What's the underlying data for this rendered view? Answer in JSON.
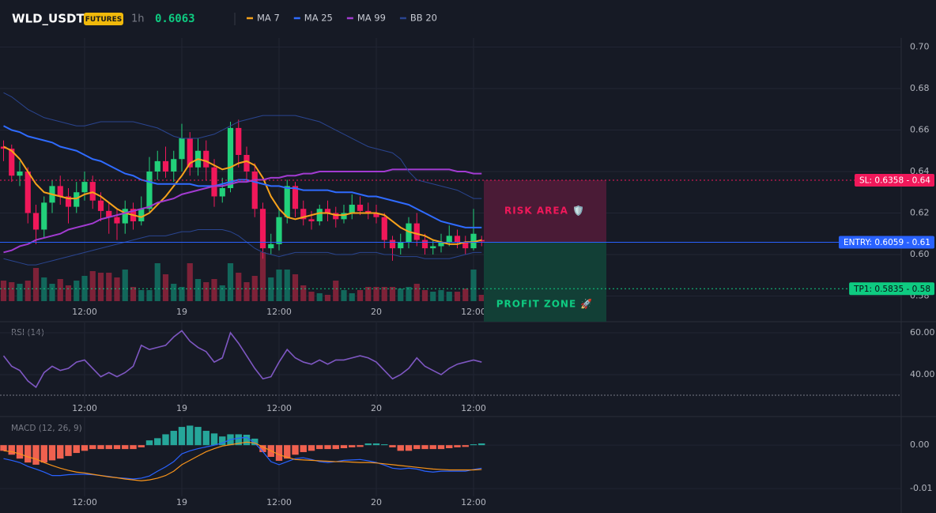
{
  "chart_data": [
    {
      "type": "candlestick",
      "symbol": "WLD_USDT",
      "badge": "FUTURES",
      "interval": "1h",
      "last_price": 0.6063,
      "categories": [
        null,
        null,
        null,
        null,
        null,
        null,
        null,
        null,
        null,
        null,
        "12:00",
        null,
        null,
        null,
        null,
        null,
        null,
        null,
        null,
        null,
        null,
        null,
        "19",
        null,
        null,
        null,
        null,
        null,
        null,
        null,
        null,
        null,
        null,
        null,
        "12:00",
        null,
        null,
        null,
        null,
        null,
        null,
        null,
        null,
        null,
        null,
        null,
        "20",
        null,
        null,
        null,
        null,
        null,
        null,
        null,
        null,
        null,
        null,
        null,
        "12:00",
        null
      ],
      "open": [
        0.652,
        0.651,
        0.638,
        0.64,
        0.62,
        0.612,
        0.625,
        0.633,
        0.628,
        0.623,
        0.63,
        0.635,
        0.626,
        0.621,
        0.618,
        0.615,
        0.622,
        0.616,
        0.622,
        0.64,
        0.645,
        0.64,
        0.646,
        0.656,
        0.642,
        0.65,
        0.642,
        0.628,
        0.632,
        0.661,
        0.648,
        0.64,
        0.622,
        0.603,
        0.605,
        0.618,
        0.633,
        0.622,
        0.617,
        0.616,
        0.622,
        0.62,
        0.617,
        0.62,
        0.624,
        0.621,
        0.62,
        0.618,
        0.607,
        0.603,
        0.606,
        0.615,
        0.607,
        0.603,
        0.604,
        0.606,
        0.609,
        0.606,
        0.603,
        0.607
      ],
      "high": [
        0.655,
        0.653,
        0.645,
        0.642,
        0.624,
        0.628,
        0.636,
        0.638,
        0.632,
        0.635,
        0.64,
        0.638,
        0.63,
        0.625,
        0.622,
        0.626,
        0.625,
        0.628,
        0.647,
        0.65,
        0.652,
        0.65,
        0.663,
        0.659,
        0.656,
        0.655,
        0.646,
        0.637,
        0.664,
        0.665,
        0.652,
        0.644,
        0.625,
        0.61,
        0.622,
        0.636,
        0.635,
        0.626,
        0.621,
        0.624,
        0.626,
        0.623,
        0.624,
        0.629,
        0.628,
        0.625,
        0.624,
        0.62,
        0.609,
        0.61,
        0.618,
        0.62,
        0.61,
        0.607,
        0.61,
        0.614,
        0.612,
        0.609,
        0.622,
        0.609
      ],
      "low": [
        0.645,
        0.635,
        0.633,
        0.615,
        0.605,
        0.608,
        0.62,
        0.624,
        0.615,
        0.62,
        0.626,
        0.622,
        0.616,
        0.61,
        0.607,
        0.61,
        0.612,
        0.614,
        0.62,
        0.636,
        0.637,
        0.635,
        0.64,
        0.638,
        0.638,
        0.636,
        0.623,
        0.625,
        0.63,
        0.642,
        0.635,
        0.618,
        0.598,
        0.6,
        0.602,
        0.615,
        0.618,
        0.614,
        0.612,
        0.614,
        0.616,
        0.613,
        0.615,
        0.617,
        0.619,
        0.617,
        0.615,
        0.603,
        0.597,
        0.6,
        0.603,
        0.604,
        0.6,
        0.6,
        0.601,
        0.604,
        0.603,
        0.6,
        0.602,
        0.604
      ],
      "close": [
        0.651,
        0.638,
        0.64,
        0.62,
        0.612,
        0.625,
        0.633,
        0.628,
        0.623,
        0.63,
        0.635,
        0.626,
        0.621,
        0.618,
        0.615,
        0.622,
        0.616,
        0.622,
        0.64,
        0.645,
        0.64,
        0.646,
        0.656,
        0.642,
        0.65,
        0.642,
        0.628,
        0.632,
        0.661,
        0.648,
        0.64,
        0.622,
        0.603,
        0.605,
        0.618,
        0.633,
        0.622,
        0.617,
        0.616,
        0.622,
        0.62,
        0.617,
        0.62,
        0.624,
        0.621,
        0.62,
        0.618,
        0.607,
        0.603,
        0.606,
        0.615,
        0.607,
        0.603,
        0.604,
        0.606,
        0.609,
        0.606,
        0.603,
        0.61,
        0.6063
      ],
      "volume": [
        26,
        24,
        22,
        26,
        42,
        30,
        22,
        28,
        20,
        26,
        32,
        38,
        36,
        36,
        30,
        40,
        18,
        14,
        14,
        48,
        34,
        22,
        18,
        48,
        28,
        24,
        28,
        20,
        48,
        36,
        24,
        32,
        62,
        30,
        40,
        40,
        34,
        20,
        12,
        10,
        8,
        26,
        14,
        10,
        14,
        18,
        18,
        18,
        18,
        16,
        18,
        22,
        14,
        12,
        14,
        12,
        12,
        16,
        40,
        8
      ],
      "up_color": "#22d07a",
      "down_color": "#f0185a",
      "volume_up_color": "#12675b",
      "volume_down_color": "#7d2238",
      "series": [
        {
          "name": "MA 7",
          "color": "#f7a21b",
          "values": [
            0.652,
            0.65,
            0.646,
            0.64,
            0.634,
            0.63,
            0.629,
            0.628,
            0.627,
            0.627,
            0.629,
            0.63,
            0.628,
            0.625,
            0.622,
            0.62,
            0.619,
            0.618,
            0.62,
            0.624,
            0.628,
            0.633,
            0.638,
            0.644,
            0.646,
            0.645,
            0.643,
            0.641,
            0.642,
            0.644,
            0.645,
            0.643,
            0.637,
            0.628,
            0.622,
            0.618,
            0.617,
            0.618,
            0.619,
            0.62,
            0.62,
            0.619,
            0.619,
            0.62,
            0.62,
            0.62,
            0.62,
            0.619,
            0.616,
            0.613,
            0.611,
            0.61,
            0.609,
            0.607,
            0.606,
            0.605,
            0.605,
            0.606,
            0.606,
            0.607
          ]
        },
        {
          "name": "MA 25",
          "color": "#2f6bff",
          "values": [
            0.662,
            0.66,
            0.659,
            0.657,
            0.656,
            0.655,
            0.654,
            0.652,
            0.651,
            0.65,
            0.648,
            0.646,
            0.645,
            0.643,
            0.641,
            0.639,
            0.638,
            0.636,
            0.635,
            0.634,
            0.634,
            0.634,
            0.634,
            0.634,
            0.633,
            0.633,
            0.633,
            0.634,
            0.635,
            0.636,
            0.636,
            0.635,
            0.634,
            0.633,
            0.633,
            0.632,
            0.632,
            0.631,
            0.631,
            0.631,
            0.631,
            0.63,
            0.63,
            0.63,
            0.629,
            0.628,
            0.628,
            0.627,
            0.626,
            0.625,
            0.624,
            0.622,
            0.62,
            0.618,
            0.616,
            0.615,
            0.614,
            0.613,
            0.613,
            0.613
          ]
        },
        {
          "name": "MA 99",
          "color": "#a23bd1",
          "values": [
            0.601,
            0.602,
            0.604,
            0.605,
            0.607,
            0.608,
            0.609,
            0.61,
            0.612,
            0.613,
            0.614,
            0.615,
            0.617,
            0.618,
            0.619,
            0.62,
            0.621,
            0.622,
            0.623,
            0.625,
            0.626,
            0.627,
            0.629,
            0.63,
            0.631,
            0.632,
            0.633,
            0.633,
            0.634,
            0.635,
            0.635,
            0.636,
            0.636,
            0.637,
            0.637,
            0.638,
            0.638,
            0.639,
            0.639,
            0.64,
            0.64,
            0.64,
            0.64,
            0.64,
            0.64,
            0.64,
            0.64,
            0.64,
            0.641,
            0.641,
            0.641,
            0.641,
            0.641,
            0.641,
            0.641,
            0.641,
            0.64,
            0.64,
            0.639,
            0.639
          ]
        },
        {
          "name": "BB 20",
          "color": "#2a4590",
          "upper": [
            0.678,
            0.676,
            0.673,
            0.67,
            0.668,
            0.666,
            0.665,
            0.664,
            0.663,
            0.662,
            0.662,
            0.663,
            0.664,
            0.664,
            0.664,
            0.664,
            0.664,
            0.663,
            0.662,
            0.661,
            0.659,
            0.657,
            0.656,
            0.656,
            0.656,
            0.657,
            0.658,
            0.66,
            0.662,
            0.664,
            0.665,
            0.666,
            0.667,
            0.667,
            0.667,
            0.667,
            0.667,
            0.666,
            0.665,
            0.664,
            0.662,
            0.66,
            0.658,
            0.656,
            0.654,
            0.652,
            0.651,
            0.65,
            0.649,
            0.646,
            0.64,
            0.636,
            0.635,
            0.634,
            0.633,
            0.632,
            0.631,
            0.629,
            0.627,
            0.627
          ],
          "lower": [
            0.598,
            0.597,
            0.596,
            0.595,
            0.595,
            0.596,
            0.597,
            0.598,
            0.599,
            0.6,
            0.601,
            0.602,
            0.603,
            0.604,
            0.605,
            0.606,
            0.607,
            0.608,
            0.609,
            0.609,
            0.609,
            0.61,
            0.611,
            0.611,
            0.612,
            0.612,
            0.612,
            0.612,
            0.611,
            0.609,
            0.606,
            0.603,
            0.601,
            0.6,
            0.599,
            0.6,
            0.601,
            0.601,
            0.601,
            0.601,
            0.601,
            0.6,
            0.6,
            0.6,
            0.601,
            0.601,
            0.601,
            0.6,
            0.6,
            0.599,
            0.599,
            0.599,
            0.598,
            0.598,
            0.598,
            0.598,
            0.599,
            0.6,
            0.601,
            0.601
          ]
        }
      ],
      "levels": [
        {
          "label": "SL: 0.6358 - 0.64",
          "value": 0.6358,
          "color": "#f0185a",
          "text_color": "#ffffff",
          "dashed": true
        },
        {
          "label": "ENTRY: 0.6059 - 0.61",
          "value": 0.6059,
          "color": "#2962ff",
          "text_color": "#ffffff",
          "dashed": false
        },
        {
          "label": "TP1: 0.5835 - 0.58",
          "value": 0.5835,
          "color": "#0ecb81",
          "text_color": "#0b0e14",
          "dashed": true
        }
      ],
      "zones": [
        {
          "label": "RISK AREA 🛡️",
          "from": 0.6358,
          "to": 0.6059,
          "color": "#4a1b36",
          "text_color": "#f0185a"
        },
        {
          "label": "PROFIT ZONE 🚀",
          "from": 0.6059,
          "to": 0.546,
          "color": "#123f36",
          "text_color": "#0ecb81"
        }
      ],
      "ylim": [
        0.5775,
        0.7044
      ],
      "yticks": [
        0.58,
        {
          "value": 0.6,
          "label": "0.60"
        },
        0.62,
        0.64,
        0.66,
        0.68,
        {
          "value": 0.7,
          "label": "0.70"
        }
      ]
    },
    {
      "type": "line",
      "title": "RSI (14)",
      "color": "#7e57c2",
      "values": [
        49,
        44,
        42,
        37,
        34,
        41,
        44,
        42,
        43,
        46,
        47,
        43,
        39,
        41,
        39,
        41,
        44,
        54,
        52,
        53,
        54,
        58,
        61,
        56,
        53,
        51,
        46,
        48,
        60,
        55,
        49,
        43,
        38,
        39,
        46,
        52,
        48,
        46,
        45,
        47,
        45,
        47,
        47,
        48,
        49,
        48,
        46,
        42,
        38,
        40,
        43,
        48,
        44,
        42,
        40,
        43,
        45,
        46,
        47,
        46
      ],
      "ylim": [
        26.4,
        64.9
      ],
      "yticks": [
        {
          "value": 40,
          "label": "40.00"
        },
        {
          "value": 60,
          "label": "60.00"
        }
      ]
    },
    {
      "type": "macd",
      "title": "MACD (12, 26, 9)",
      "histogram": [
        -0.0013,
        -0.0022,
        -0.0031,
        -0.004,
        -0.0045,
        -0.004,
        -0.0035,
        -0.0031,
        -0.0025,
        -0.0018,
        -0.0013,
        -0.0009,
        -0.0009,
        -0.0009,
        -0.0009,
        -0.0009,
        -0.0009,
        -0.0005,
        0.0011,
        0.0016,
        0.0025,
        0.0033,
        0.0042,
        0.0045,
        0.0042,
        0.0033,
        0.0027,
        0.002,
        0.0025,
        0.0025,
        0.0024,
        0.0015,
        -0.0016,
        -0.0027,
        -0.0036,
        -0.0031,
        -0.0022,
        -0.0016,
        -0.0013,
        -0.0009,
        -0.0009,
        -0.0009,
        -0.0007,
        -0.0005,
        -0.0004,
        0.0004,
        0.0004,
        0.0002,
        -0.0005,
        -0.0013,
        -0.0013,
        -0.0009,
        -0.0009,
        -0.0009,
        -0.0009,
        -0.0007,
        -0.0005,
        -0.0004,
        0.0002,
        0.0004
      ],
      "macd": [
        -0.0031,
        -0.0035,
        -0.004,
        -0.0049,
        -0.0055,
        -0.0062,
        -0.007,
        -0.007,
        -0.0068,
        -0.0067,
        -0.0067,
        -0.0068,
        -0.007,
        -0.0072,
        -0.0075,
        -0.0076,
        -0.0078,
        -0.0076,
        -0.0071,
        -0.006,
        -0.005,
        -0.0038,
        -0.002,
        -0.0013,
        -0.0008,
        -0.0004,
        0,
        0.0005,
        0.0013,
        0.0016,
        0.0018,
        0.0005,
        -0.0015,
        -0.0038,
        -0.0045,
        -0.0038,
        -0.0031,
        -0.0029,
        -0.0033,
        -0.0038,
        -0.004,
        -0.0038,
        -0.0035,
        -0.0034,
        -0.0033,
        -0.0036,
        -0.004,
        -0.0046,
        -0.0053,
        -0.0055,
        -0.0053,
        -0.0055,
        -0.006,
        -0.0062,
        -0.006,
        -0.006,
        -0.006,
        -0.006,
        -0.0056,
        -0.0053
      ],
      "signal": [
        -0.0013,
        -0.0015,
        -0.002,
        -0.0027,
        -0.0032,
        -0.004,
        -0.0047,
        -0.0053,
        -0.0058,
        -0.0062,
        -0.0064,
        -0.0067,
        -0.007,
        -0.0073,
        -0.0075,
        -0.0078,
        -0.008,
        -0.0082,
        -0.008,
        -0.0076,
        -0.007,
        -0.006,
        -0.0045,
        -0.0035,
        -0.0025,
        -0.0015,
        -0.0008,
        -0.0002,
        0.0001,
        0.0004,
        0.0007,
        0.0005,
        -0.0004,
        -0.0013,
        -0.0022,
        -0.0028,
        -0.0033,
        -0.0034,
        -0.0035,
        -0.0036,
        -0.0037,
        -0.0038,
        -0.0038,
        -0.0039,
        -0.004,
        -0.004,
        -0.0041,
        -0.0043,
        -0.0045,
        -0.0047,
        -0.0049,
        -0.0051,
        -0.0053,
        -0.0055,
        -0.0056,
        -0.0057,
        -0.0057,
        -0.0057,
        -0.0057,
        -0.0056
      ],
      "hist_up_color": "#26a69a",
      "hist_down_color": "#f0614f",
      "macd_color": "#2962ff",
      "signal_color": "#f7931a",
      "ylim": [
        -0.0118,
        0.0064
      ],
      "yticks": [
        {
          "value": -0.01,
          "label": "-0.01"
        },
        {
          "value": 0,
          "label": "0.00"
        }
      ]
    }
  ]
}
